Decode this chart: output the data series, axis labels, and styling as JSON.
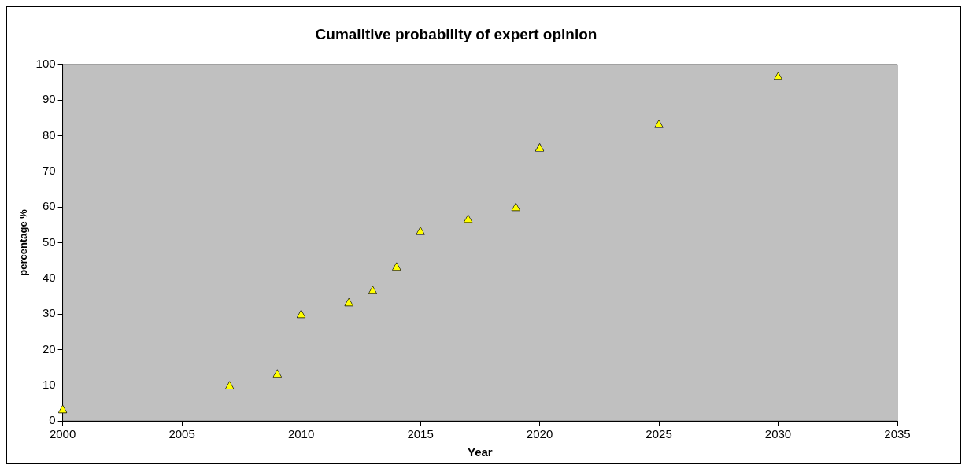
{
  "chart_data": {
    "type": "scatter",
    "title": "Cumalitive probability of expert opinion",
    "xlabel": "Year",
    "ylabel": "percentage %",
    "x": [
      2000,
      2007,
      2009,
      2010,
      2012,
      2013,
      2014,
      2015,
      2017,
      2019,
      2020,
      2025,
      2030
    ],
    "values": [
      3.3,
      10,
      13.3,
      30,
      33.3,
      36.7,
      43.3,
      53.3,
      56.7,
      60,
      76.7,
      83.3,
      96.7
    ],
    "color": "#ffff00",
    "marker": "triangle",
    "xlim": [
      2000,
      2035
    ],
    "xticks": [
      2000,
      2005,
      2010,
      2015,
      2020,
      2025,
      2030,
      2035
    ],
    "ylim": [
      0,
      100
    ],
    "yticks": [
      0,
      10,
      20,
      30,
      40,
      50,
      60,
      70,
      80,
      90,
      100
    ]
  }
}
